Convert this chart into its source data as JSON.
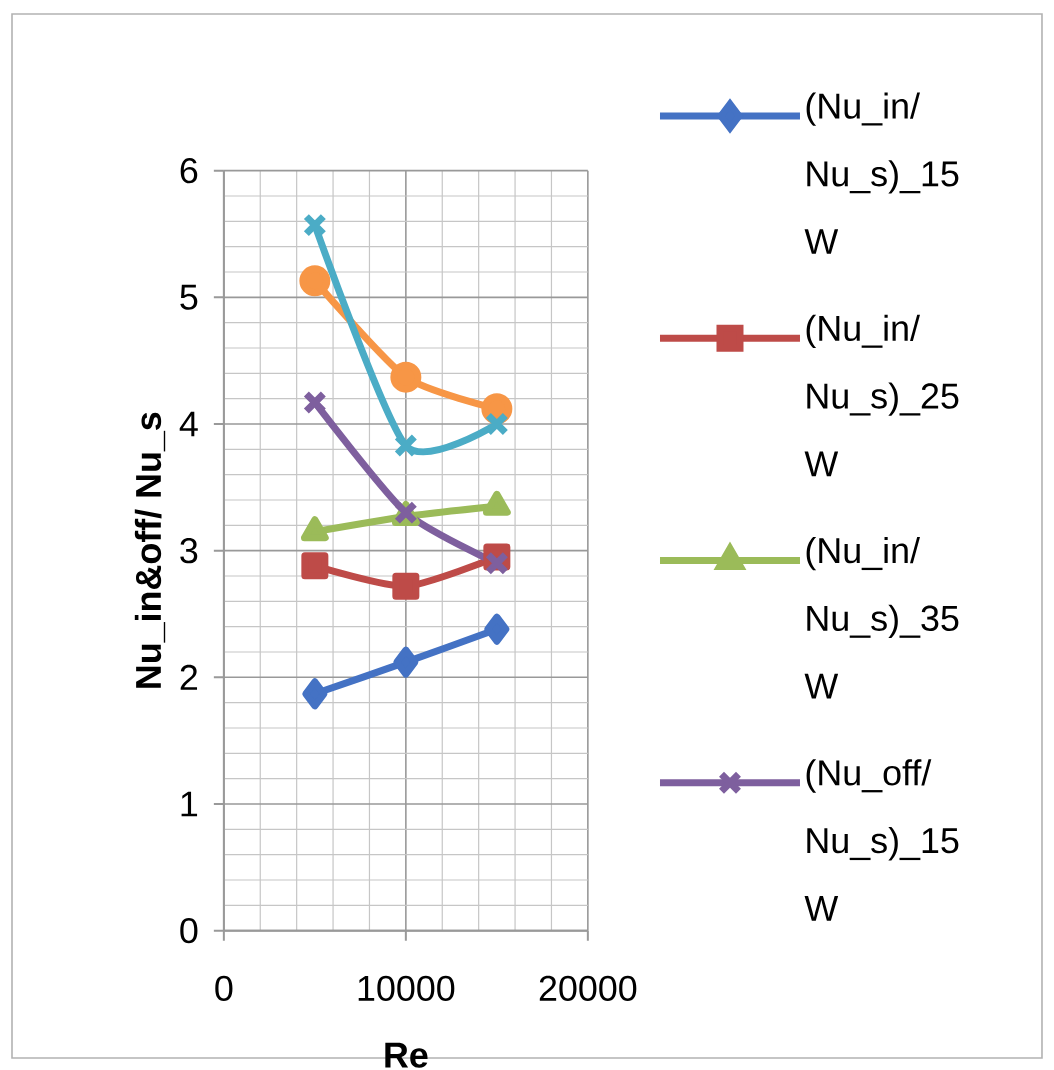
{
  "chart_data": {
    "type": "line",
    "xlabel": "Re",
    "ylabel": "Nu_in&off/ Nu_s",
    "x": [
      5000,
      10000,
      15000
    ],
    "xlim": [
      0,
      20000
    ],
    "xticks": [
      0,
      10000,
      20000
    ],
    "ylim": [
      0,
      6
    ],
    "yticks": [
      0,
      1,
      2,
      3,
      4,
      5,
      6
    ],
    "grid": true,
    "legend": "right",
    "line_style": "solid",
    "series": [
      {
        "name": "(Nu_in/ Nu_s)_15 W",
        "color": "#4472c4",
        "marker": "diamond",
        "values": [
          1.87,
          2.12,
          2.38
        ]
      },
      {
        "name": "(Nu_in/ Nu_s)_25 W",
        "color": "#be4b48",
        "marker": "square",
        "values": [
          2.88,
          2.72,
          2.95
        ]
      },
      {
        "name": "(Nu_in/ Nu_s)_35 W",
        "color": "#9bbb59",
        "marker": "triangle",
        "values": [
          3.15,
          3.27,
          3.35
        ]
      },
      {
        "name": "(Nu_off/ Nu_s)_15 W",
        "color": "#7e5f9e",
        "marker": "cross",
        "values": [
          4.17,
          3.3,
          2.9
        ]
      },
      {
        "color": "#f79646",
        "marker": "circle",
        "values": [
          5.13,
          4.37,
          4.12
        ]
      },
      {
        "color": "#4bacc6",
        "marker": "cross",
        "values": [
          5.57,
          3.83,
          4.0
        ]
      }
    ]
  }
}
